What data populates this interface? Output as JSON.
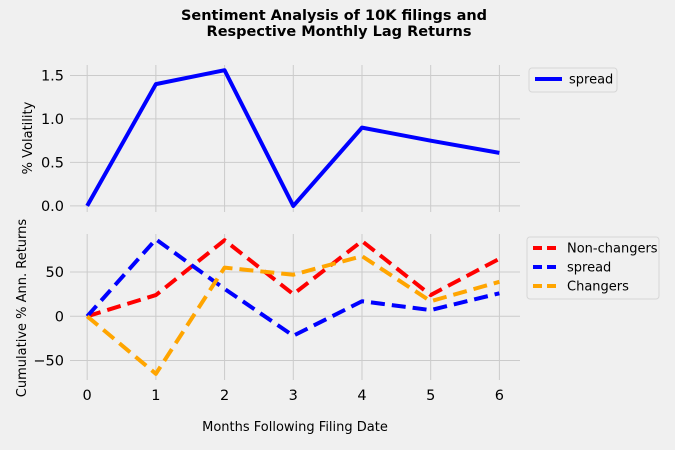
{
  "chart_data": {
    "title": [
      "Sentiment Analysis of 10K filings and",
      "Respective Monthly Lag Returns"
    ],
    "xlabel": "Months Following Filing Date",
    "x": [
      0,
      1,
      2,
      3,
      4,
      5,
      6
    ],
    "xticks": [
      "0",
      "1",
      "2",
      "3",
      "4",
      "5",
      "6"
    ],
    "xlim": [
      -0.25,
      6.3
    ],
    "panels": [
      {
        "type": "line",
        "ylabel": "% Volatility",
        "ylim": [
          -0.07,
          1.62
        ],
        "yticks": [
          0.0,
          0.5,
          1.0,
          1.5
        ],
        "ytick_labels": [
          "0.0",
          "0.5",
          "1.0",
          "1.5"
        ],
        "grid": true,
        "legend_position": "outside-top-right",
        "series": [
          {
            "name": "spread",
            "color": "#0000ff",
            "dash": "solid",
            "values": [
              0.0,
              1.4,
              1.56,
              0.0,
              0.9,
              0.75,
              0.61
            ]
          }
        ]
      },
      {
        "type": "line",
        "ylabel": "Cumulative % Ann. Returns",
        "ylim": [
          -72,
          93
        ],
        "yticks": [
          -50,
          0,
          50
        ],
        "ytick_labels": [
          "−50",
          "0",
          "50"
        ],
        "grid": true,
        "legend_position": "outside-top-right",
        "series": [
          {
            "name": "Non-changers",
            "color": "#ff0000",
            "dash": "dashed",
            "values": [
              0,
              24,
              86,
              25,
              85,
              24,
              65
            ]
          },
          {
            "name": "spread",
            "color": "#0000ff",
            "dash": "dashed",
            "values": [
              0,
              87,
              31,
              -22,
              17,
              7,
              26
            ]
          },
          {
            "name": "Changers",
            "color": "#ffa500",
            "dash": "dashed",
            "values": [
              0,
              -65,
              55,
              47,
              68,
              17,
              39
            ]
          }
        ]
      }
    ]
  }
}
